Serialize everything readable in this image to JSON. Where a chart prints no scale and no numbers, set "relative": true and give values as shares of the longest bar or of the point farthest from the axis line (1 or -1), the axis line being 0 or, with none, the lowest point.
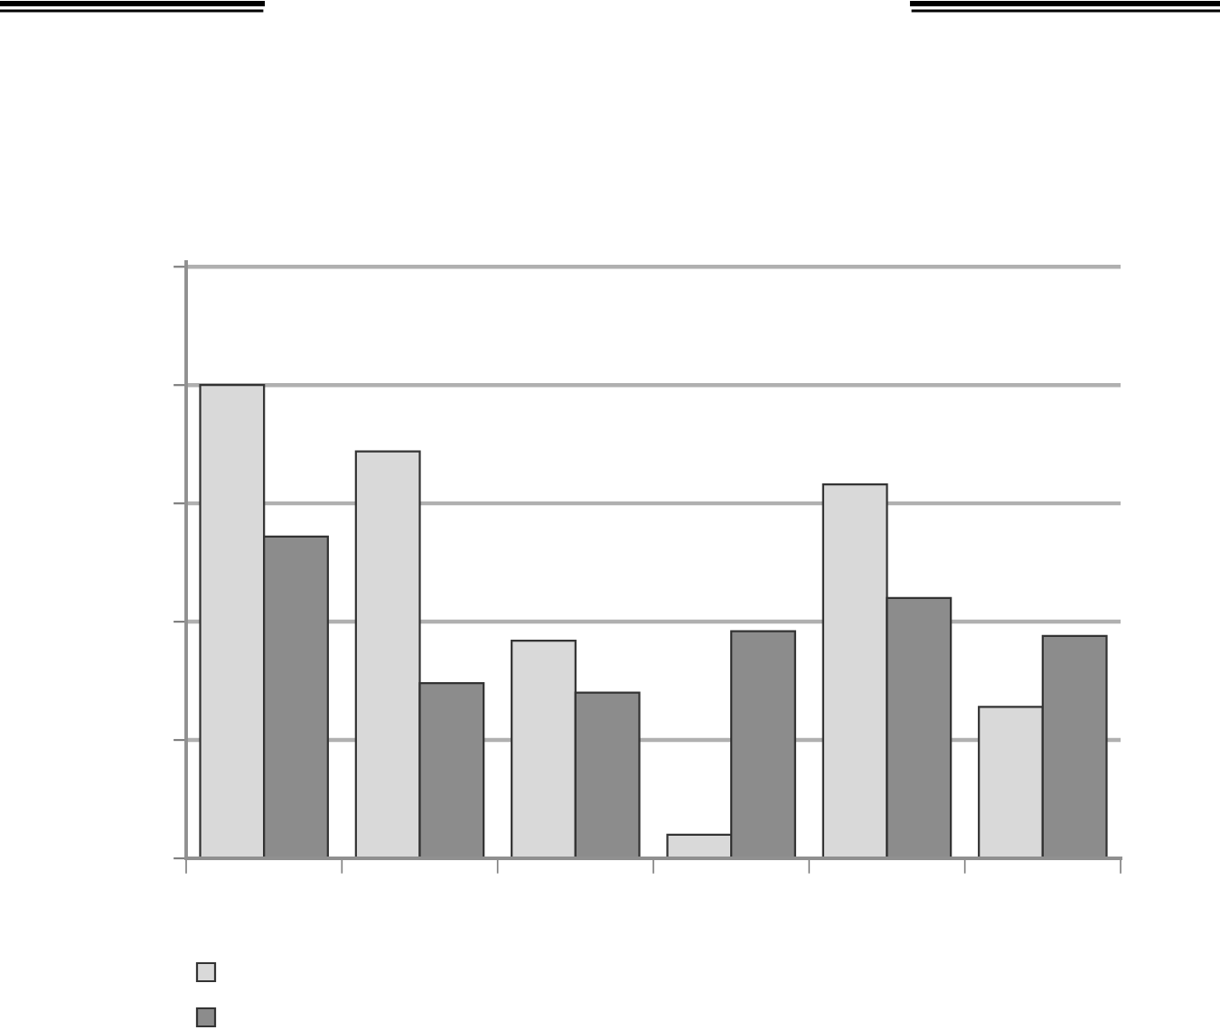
{
  "chart_data": {
    "type": "bar",
    "relative": true,
    "categories": [
      null,
      null,
      null,
      null,
      null,
      null
    ],
    "series": [
      {
        "color": "#d9d9d9",
        "values": [
          1.0,
          0.86,
          0.46,
          0.05,
          0.79,
          0.32
        ]
      },
      {
        "color": "#8c8c8c",
        "values": [
          0.68,
          0.37,
          0.35,
          0.48,
          0.55,
          0.47
        ]
      }
    ],
    "grid": "y"
  }
}
